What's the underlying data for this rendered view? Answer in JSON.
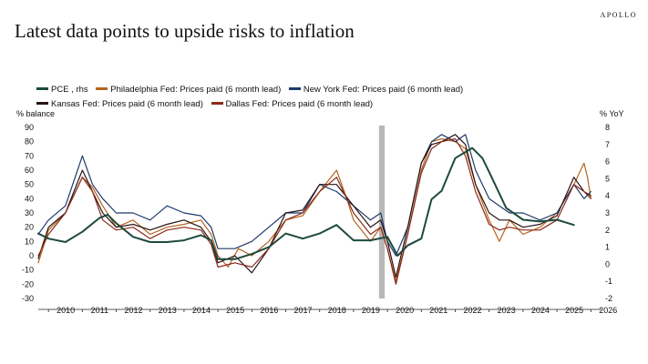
{
  "brand": "APOLLO",
  "chart_data": {
    "type": "line",
    "title": "Latest data points to upside risks to inflation",
    "ylabel": "% balance",
    "ylabel_right": "% YoY",
    "ylim": [
      -30,
      90
    ],
    "ylim_right": [
      -2,
      8
    ],
    "yticks": [
      90,
      80,
      70,
      60,
      50,
      40,
      30,
      20,
      10,
      0,
      -10,
      -20,
      -30
    ],
    "yticks_right": [
      8,
      7,
      6,
      5,
      4,
      3,
      2,
      1,
      0,
      -1,
      -2
    ],
    "xlim": [
      2009.7,
      2026.1
    ],
    "xticks": [
      2010,
      2011,
      2012,
      2013,
      2014,
      2015,
      2016,
      2017,
      2018,
      2019,
      2020,
      2021,
      2022,
      2023,
      2024,
      2025,
      2026
    ],
    "grid": false,
    "legend": "top",
    "shaded_band": [
      2019.75,
      2019.92
    ],
    "series": [
      {
        "name": "PCE , rhs",
        "axis": "right",
        "color": "#1d4a3c",
        "width": 2,
        "points": [
          [
            2009.7,
            1.8
          ],
          [
            2010,
            1.5
          ],
          [
            2010.5,
            1.3
          ],
          [
            2011,
            1.9
          ],
          [
            2011.5,
            2.7
          ],
          [
            2011.75,
            2.9
          ],
          [
            2012,
            2.4
          ],
          [
            2012.5,
            1.6
          ],
          [
            2013,
            1.3
          ],
          [
            2013.5,
            1.3
          ],
          [
            2014,
            1.4
          ],
          [
            2014.5,
            1.7
          ],
          [
            2014.8,
            1.4
          ],
          [
            2015,
            0.3
          ],
          [
            2015.5,
            0.3
          ],
          [
            2016,
            0.6
          ],
          [
            2016.5,
            1.0
          ],
          [
            2017,
            1.8
          ],
          [
            2017.5,
            1.5
          ],
          [
            2018,
            1.8
          ],
          [
            2018.5,
            2.3
          ],
          [
            2019,
            1.4
          ],
          [
            2019.5,
            1.4
          ],
          [
            2020,
            1.6
          ],
          [
            2020.3,
            0.5
          ],
          [
            2020.6,
            1.1
          ],
          [
            2021,
            1.5
          ],
          [
            2021.3,
            3.8
          ],
          [
            2021.6,
            4.3
          ],
          [
            2022,
            6.2
          ],
          [
            2022.5,
            6.8
          ],
          [
            2022.8,
            6.2
          ],
          [
            2023,
            5.4
          ],
          [
            2023.5,
            3.3
          ],
          [
            2024,
            2.6
          ],
          [
            2024.5,
            2.5
          ],
          [
            2025,
            2.6
          ],
          [
            2025.5,
            2.3
          ]
        ]
      },
      {
        "name": "Philadelphia Fed: Prices paid (6 month lead)",
        "axis": "left",
        "color": "#b5651d",
        "width": 1.2,
        "points": [
          [
            2009.7,
            -5
          ],
          [
            2010,
            18
          ],
          [
            2010.5,
            30
          ],
          [
            2011,
            55
          ],
          [
            2011.3,
            48
          ],
          [
            2011.6,
            35
          ],
          [
            2012,
            20
          ],
          [
            2012.5,
            25
          ],
          [
            2013,
            15
          ],
          [
            2013.5,
            20
          ],
          [
            2014,
            22
          ],
          [
            2014.5,
            25
          ],
          [
            2014.8,
            15
          ],
          [
            2015,
            0
          ],
          [
            2015.3,
            -8
          ],
          [
            2015.6,
            5
          ],
          [
            2016,
            0
          ],
          [
            2016.5,
            10
          ],
          [
            2017,
            25
          ],
          [
            2017.5,
            28
          ],
          [
            2018,
            45
          ],
          [
            2018.5,
            60
          ],
          [
            2018.8,
            40
          ],
          [
            2019,
            25
          ],
          [
            2019.5,
            10
          ],
          [
            2019.8,
            20
          ],
          [
            2020,
            5
          ],
          [
            2020.25,
            -18
          ],
          [
            2020.6,
            15
          ],
          [
            2021,
            60
          ],
          [
            2021.3,
            80
          ],
          [
            2021.6,
            82
          ],
          [
            2022,
            80
          ],
          [
            2022.3,
            75
          ],
          [
            2022.6,
            50
          ],
          [
            2023,
            25
          ],
          [
            2023.3,
            10
          ],
          [
            2023.6,
            25
          ],
          [
            2024,
            15
          ],
          [
            2024.5,
            20
          ],
          [
            2025,
            30
          ],
          [
            2025.5,
            50
          ],
          [
            2025.8,
            65
          ],
          [
            2025.9,
            55
          ],
          [
            2026,
            40
          ]
        ]
      },
      {
        "name": "New York Fed: Prices paid (6 month lead)",
        "axis": "left",
        "color": "#1f3a6b",
        "width": 1.2,
        "points": [
          [
            2009.7,
            15
          ],
          [
            2010,
            25
          ],
          [
            2010.5,
            35
          ],
          [
            2011,
            70
          ],
          [
            2011.3,
            50
          ],
          [
            2011.6,
            40
          ],
          [
            2012,
            30
          ],
          [
            2012.5,
            30
          ],
          [
            2013,
            25
          ],
          [
            2013.5,
            35
          ],
          [
            2014,
            30
          ],
          [
            2014.5,
            28
          ],
          [
            2014.8,
            20
          ],
          [
            2015,
            5
          ],
          [
            2015.5,
            5
          ],
          [
            2016,
            10
          ],
          [
            2016.5,
            20
          ],
          [
            2017,
            30
          ],
          [
            2017.5,
            30
          ],
          [
            2018,
            50
          ],
          [
            2018.5,
            45
          ],
          [
            2019,
            35
          ],
          [
            2019.5,
            25
          ],
          [
            2019.8,
            30
          ],
          [
            2020,
            10
          ],
          [
            2020.25,
            0
          ],
          [
            2020.6,
            20
          ],
          [
            2021,
            65
          ],
          [
            2021.3,
            80
          ],
          [
            2021.6,
            85
          ],
          [
            2022,
            80
          ],
          [
            2022.3,
            85
          ],
          [
            2022.6,
            60
          ],
          [
            2023,
            40
          ],
          [
            2023.3,
            35
          ],
          [
            2023.6,
            30
          ],
          [
            2024,
            30
          ],
          [
            2024.5,
            25
          ],
          [
            2025,
            30
          ],
          [
            2025.5,
            50
          ],
          [
            2025.8,
            40
          ],
          [
            2026,
            45
          ]
        ]
      },
      {
        "name": "Kansas Fed: Prices paid (6 month lead)",
        "axis": "left",
        "color": "#2a1414",
        "width": 1.2,
        "points": [
          [
            2009.7,
            -2
          ],
          [
            2010,
            20
          ],
          [
            2010.5,
            30
          ],
          [
            2011,
            60
          ],
          [
            2011.3,
            45
          ],
          [
            2011.6,
            30
          ],
          [
            2012,
            20
          ],
          [
            2012.5,
            22
          ],
          [
            2013,
            18
          ],
          [
            2013.5,
            22
          ],
          [
            2014,
            25
          ],
          [
            2014.5,
            20
          ],
          [
            2014.8,
            10
          ],
          [
            2015,
            -5
          ],
          [
            2015.5,
            0
          ],
          [
            2016,
            -12
          ],
          [
            2016.5,
            5
          ],
          [
            2017,
            30
          ],
          [
            2017.5,
            32
          ],
          [
            2018,
            50
          ],
          [
            2018.5,
            50
          ],
          [
            2019,
            35
          ],
          [
            2019.5,
            20
          ],
          [
            2019.8,
            25
          ],
          [
            2020,
            10
          ],
          [
            2020.25,
            -15
          ],
          [
            2020.6,
            20
          ],
          [
            2021,
            65
          ],
          [
            2021.3,
            78
          ],
          [
            2021.6,
            80
          ],
          [
            2022,
            85
          ],
          [
            2022.3,
            78
          ],
          [
            2022.6,
            50
          ],
          [
            2023,
            30
          ],
          [
            2023.3,
            25
          ],
          [
            2023.6,
            25
          ],
          [
            2024,
            20
          ],
          [
            2024.5,
            22
          ],
          [
            2025,
            28
          ],
          [
            2025.5,
            55
          ],
          [
            2025.8,
            45
          ],
          [
            2026,
            42
          ]
        ]
      },
      {
        "name": "Dallas Fed: Prices paid (6 month lead)",
        "axis": "left",
        "color": "#8a2a1a",
        "width": 1.2,
        "points": [
          [
            2009.7,
            0
          ],
          [
            2010,
            15
          ],
          [
            2010.5,
            30
          ],
          [
            2011,
            55
          ],
          [
            2011.3,
            45
          ],
          [
            2011.6,
            25
          ],
          [
            2012,
            18
          ],
          [
            2012.5,
            20
          ],
          [
            2013,
            12
          ],
          [
            2013.5,
            18
          ],
          [
            2014,
            20
          ],
          [
            2014.5,
            18
          ],
          [
            2014.8,
            8
          ],
          [
            2015,
            -8
          ],
          [
            2015.5,
            -5
          ],
          [
            2016,
            -8
          ],
          [
            2016.5,
            5
          ],
          [
            2017,
            25
          ],
          [
            2017.5,
            30
          ],
          [
            2018,
            45
          ],
          [
            2018.5,
            55
          ],
          [
            2019,
            30
          ],
          [
            2019.5,
            15
          ],
          [
            2019.8,
            20
          ],
          [
            2020,
            5
          ],
          [
            2020.25,
            -20
          ],
          [
            2020.6,
            15
          ],
          [
            2021,
            58
          ],
          [
            2021.3,
            75
          ],
          [
            2021.6,
            80
          ],
          [
            2022,
            82
          ],
          [
            2022.3,
            70
          ],
          [
            2022.6,
            45
          ],
          [
            2023,
            22
          ],
          [
            2023.3,
            18
          ],
          [
            2023.6,
            20
          ],
          [
            2024,
            18
          ],
          [
            2024.5,
            18
          ],
          [
            2025,
            25
          ],
          [
            2025.5,
            50
          ],
          [
            2025.8,
            45
          ],
          [
            2026,
            40
          ]
        ]
      }
    ]
  }
}
